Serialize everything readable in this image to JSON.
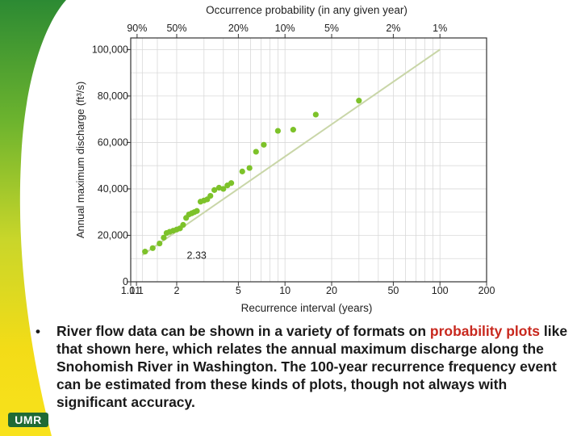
{
  "slide": {
    "bullet": "•",
    "caption_before": "River flow data can be shown in a variety of formats on ",
    "caption_highlight": "probability plots",
    "caption_after": " like that shown here, which relates the annual maximum discharge along the Snohomish River in Washington. The 100-year recurrence frequency event can be estimated from these kinds of plots, though not always with significant accuracy.",
    "logo_text": "UMR",
    "colors": {
      "band_green": "#2c8a33",
      "band_yellow": "#f7e01a",
      "highlight": "#c8281e",
      "points": "#7dc22a",
      "fit_line": "#c9d6a8",
      "grid": "#d9d9d9"
    }
  },
  "chart_data": {
    "type": "scatter",
    "title": "Occurrence probability (in any given year)",
    "xlabel": "Recurrence interval (years)",
    "ylabel": "Annual maximum discharge (ft³/s)",
    "x_scale": "log",
    "xlim": [
      1.01,
      200
    ],
    "ylim": [
      0,
      105000
    ],
    "x_ticks": [
      1.01,
      1.1,
      2,
      5,
      10,
      20,
      50,
      100,
      200
    ],
    "x_tick_labels": [
      "1.01",
      "1.1",
      "2",
      "5",
      "10",
      "20",
      "50",
      "100",
      "200"
    ],
    "y_ticks": [
      0,
      20000,
      40000,
      60000,
      80000,
      100000
    ],
    "y_tick_labels": [
      "0",
      "20,000",
      "40,000",
      "60,000",
      "80,000",
      "100,000"
    ],
    "top_axis_ticks": [
      1.11,
      2,
      5,
      10,
      20,
      50,
      100
    ],
    "top_axis_labels": [
      "90%",
      "50%",
      "20%",
      "10%",
      "5%",
      "2%",
      "1%"
    ],
    "annotations": [
      {
        "text": "2.33",
        "x": 2.33,
        "y": 6000
      }
    ],
    "grid": true,
    "series": [
      {
        "points": [
          [
            1.25,
            13000
          ],
          [
            1.4,
            14500
          ],
          [
            1.55,
            16500
          ],
          [
            1.65,
            19000
          ],
          [
            1.72,
            21000
          ],
          [
            1.8,
            21500
          ],
          [
            1.9,
            22000
          ],
          [
            2.0,
            22500
          ],
          [
            2.1,
            23000
          ],
          [
            2.2,
            24500
          ],
          [
            2.3,
            27500
          ],
          [
            2.4,
            29000
          ],
          [
            2.5,
            29500
          ],
          [
            2.6,
            30000
          ],
          [
            2.7,
            30500
          ],
          [
            2.85,
            34500
          ],
          [
            3.0,
            35000
          ],
          [
            3.15,
            35500
          ],
          [
            3.3,
            37000
          ],
          [
            3.5,
            39500
          ],
          [
            3.75,
            40500
          ],
          [
            4.0,
            40000
          ],
          [
            4.25,
            41500
          ],
          [
            4.5,
            42500
          ],
          [
            5.3,
            47500
          ],
          [
            5.9,
            49000
          ],
          [
            6.5,
            56000
          ],
          [
            7.3,
            59000
          ],
          [
            9.0,
            65000
          ],
          [
            11.3,
            65500
          ],
          [
            15.8,
            72000
          ],
          [
            30.0,
            78000
          ]
        ]
      }
    ],
    "trend_line": [
      [
        1.2,
        11500
      ],
      [
        100,
        100000
      ]
    ]
  }
}
